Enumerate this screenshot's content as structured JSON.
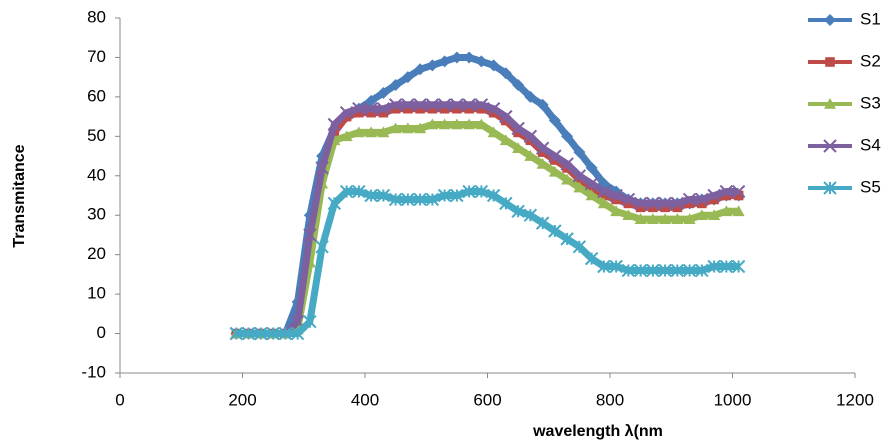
{
  "chart_data": {
    "type": "scatter-line",
    "x_label": "wavelength λ(nm",
    "y_label": "Transmitance",
    "xlim": [
      0,
      1200
    ],
    "xticks": [
      0,
      200,
      400,
      600,
      800,
      1000,
      1200
    ],
    "ylim": [
      -10,
      80
    ],
    "yticks": [
      -10,
      0,
      10,
      20,
      30,
      40,
      50,
      60,
      70,
      80
    ],
    "legend": "right",
    "x": [
      190,
      210,
      230,
      250,
      270,
      290,
      310,
      330,
      350,
      370,
      390,
      410,
      430,
      450,
      470,
      490,
      510,
      530,
      550,
      570,
      590,
      610,
      630,
      650,
      670,
      690,
      710,
      730,
      750,
      770,
      790,
      810,
      830,
      850,
      870,
      890,
      910,
      930,
      950,
      970,
      990,
      1010
    ],
    "series": [
      {
        "name": "S1",
        "color": "#4a7ebb",
        "marker": "diamond",
        "values": [
          0,
          0,
          0,
          0,
          0,
          8,
          30,
          45,
          52,
          55,
          57,
          59,
          61,
          63,
          65,
          67,
          68,
          69,
          70,
          70,
          69,
          68,
          66,
          63,
          60,
          58,
          54,
          50,
          46,
          42,
          38,
          36,
          34,
          33,
          33,
          33,
          33,
          33,
          34,
          34,
          35,
          35
        ]
      },
      {
        "name": "S2",
        "color": "#be4b48",
        "marker": "square",
        "values": [
          0,
          0,
          0,
          0,
          0,
          2,
          22,
          40,
          51,
          55,
          56,
          56,
          56,
          57,
          57,
          57,
          57,
          57,
          57,
          57,
          57,
          56,
          54,
          51,
          49,
          46,
          44,
          42,
          39,
          37,
          35,
          34,
          33,
          32,
          32,
          32,
          32,
          33,
          33,
          34,
          35,
          35
        ]
      },
      {
        "name": "S3",
        "color": "#98b954",
        "marker": "triangle",
        "values": [
          0,
          0,
          0,
          0,
          0,
          1,
          18,
          38,
          49,
          50,
          51,
          51,
          51,
          52,
          52,
          52,
          53,
          53,
          53,
          53,
          53,
          51,
          49,
          47,
          45,
          43,
          41,
          39,
          37,
          35,
          33,
          31,
          30,
          29,
          29,
          29,
          29,
          29,
          30,
          30,
          31,
          31
        ]
      },
      {
        "name": "S4",
        "color": "#7d60a0",
        "marker": "x",
        "values": [
          0,
          0,
          0,
          0,
          0,
          3,
          25,
          42,
          53,
          56,
          57,
          57,
          57,
          58,
          58,
          58,
          58,
          58,
          58,
          58,
          58,
          57,
          55,
          52,
          50,
          47,
          45,
          43,
          40,
          38,
          36,
          35,
          34,
          33,
          33,
          33,
          33,
          34,
          34,
          35,
          36,
          36
        ]
      },
      {
        "name": "S5",
        "color": "#46aac5",
        "marker": "star",
        "values": [
          0,
          0,
          0,
          0,
          0,
          0,
          3,
          22,
          33,
          36,
          36,
          35,
          35,
          34,
          34,
          34,
          34,
          35,
          35,
          36,
          36,
          35,
          33,
          31,
          30,
          28,
          26,
          24,
          22,
          19,
          17,
          17,
          16,
          16,
          16,
          16,
          16,
          16,
          16,
          17,
          17,
          17
        ]
      }
    ]
  }
}
